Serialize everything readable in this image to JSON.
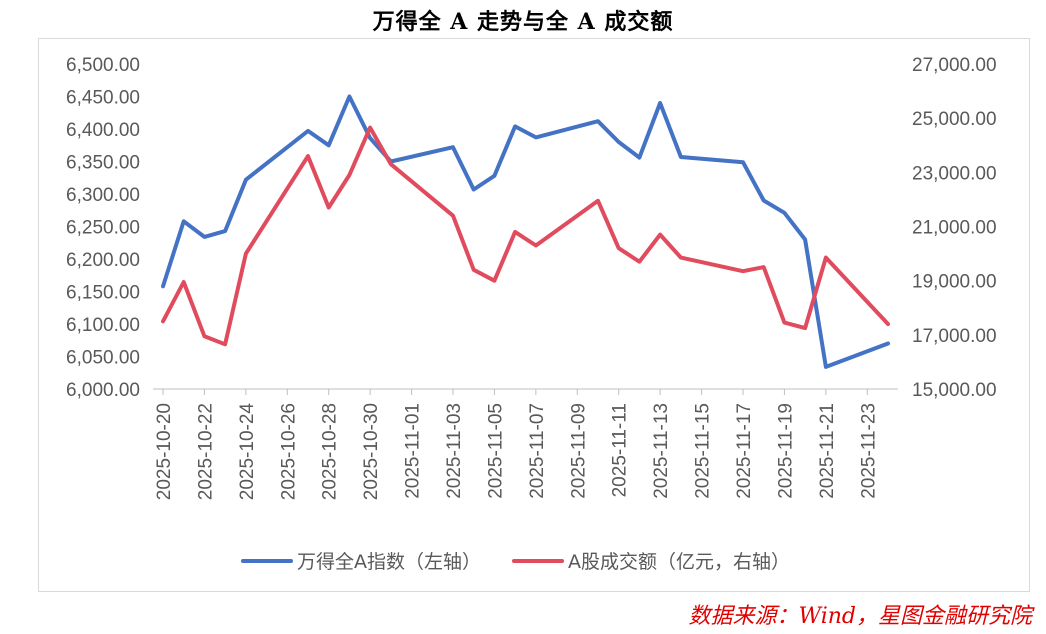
{
  "chart_data": {
    "type": "line",
    "title": "万得全 A 走势与全 A 成交额",
    "x_tick_labels": [
      "2025-10-20",
      "2025-10-22",
      "2025-10-24",
      "2025-10-26",
      "2025-10-28",
      "2025-10-30",
      "2025-11-01",
      "2025-11-03",
      "2025-11-05",
      "2025-11-07",
      "2025-11-09",
      "2025-11-11",
      "2025-11-13",
      "2025-11-15",
      "2025-11-17",
      "2025-11-19",
      "2025-11-21",
      "2025-11-23"
    ],
    "x_range": [
      "2025-10-20",
      "2025-11-24"
    ],
    "left_axis": {
      "ylim": [
        6000,
        6500
      ],
      "tick_labels": [
        "6,000.00",
        "6,050.00",
        "6,100.00",
        "6,150.00",
        "6,200.00",
        "6,250.00",
        "6,300.00",
        "6,350.00",
        "6,400.00",
        "6,450.00",
        "6,500.00"
      ]
    },
    "right_axis": {
      "ylim": [
        15000,
        27000
      ],
      "tick_labels": [
        "15,000.00",
        "17,000.00",
        "19,000.00",
        "21,000.00",
        "23,000.00",
        "25,000.00",
        "27,000.00"
      ]
    },
    "legend_position": "bottom",
    "series": [
      {
        "name": "万得全A指数（左轴）",
        "axis": "left",
        "color": "#4472c4",
        "points": [
          {
            "x": "2025-10-20",
            "y": 6158
          },
          {
            "x": "2025-10-21",
            "y": 6258
          },
          {
            "x": "2025-10-22",
            "y": 6234
          },
          {
            "x": "2025-10-23",
            "y": 6243
          },
          {
            "x": "2025-10-24",
            "y": 6322
          },
          {
            "x": "2025-10-27",
            "y": 6397
          },
          {
            "x": "2025-10-28",
            "y": 6375
          },
          {
            "x": "2025-10-29",
            "y": 6450
          },
          {
            "x": "2025-10-30",
            "y": 6386
          },
          {
            "x": "2025-10-31",
            "y": 6350
          },
          {
            "x": "2025-11-03",
            "y": 6372
          },
          {
            "x": "2025-11-04",
            "y": 6307
          },
          {
            "x": "2025-11-05",
            "y": 6328
          },
          {
            "x": "2025-11-06",
            "y": 6404
          },
          {
            "x": "2025-11-07",
            "y": 6387
          },
          {
            "x": "2025-11-10",
            "y": 6412
          },
          {
            "x": "2025-11-11",
            "y": 6380
          },
          {
            "x": "2025-11-12",
            "y": 6356
          },
          {
            "x": "2025-11-13",
            "y": 6440
          },
          {
            "x": "2025-11-14",
            "y": 6357
          },
          {
            "x": "2025-11-17",
            "y": 6349
          },
          {
            "x": "2025-11-18",
            "y": 6290
          },
          {
            "x": "2025-11-19",
            "y": 6271
          },
          {
            "x": "2025-11-20",
            "y": 6230
          },
          {
            "x": "2025-11-21",
            "y": 6034
          },
          {
            "x": "2025-11-24",
            "y": 6070
          }
        ]
      },
      {
        "name": "A股成交额（亿元，右轴）",
        "axis": "right",
        "color": "#e04b5e",
        "points": [
          {
            "x": "2025-10-20",
            "y": 17500
          },
          {
            "x": "2025-10-21",
            "y": 18950
          },
          {
            "x": "2025-10-22",
            "y": 16950
          },
          {
            "x": "2025-10-23",
            "y": 16650
          },
          {
            "x": "2025-10-24",
            "y": 20000
          },
          {
            "x": "2025-10-27",
            "y": 23600
          },
          {
            "x": "2025-10-28",
            "y": 21700
          },
          {
            "x": "2025-10-29",
            "y": 22900
          },
          {
            "x": "2025-10-30",
            "y": 24650
          },
          {
            "x": "2025-10-31",
            "y": 23300
          },
          {
            "x": "2025-11-03",
            "y": 21400
          },
          {
            "x": "2025-11-04",
            "y": 19400
          },
          {
            "x": "2025-11-05",
            "y": 19000
          },
          {
            "x": "2025-11-06",
            "y": 20800
          },
          {
            "x": "2025-11-07",
            "y": 20300
          },
          {
            "x": "2025-11-10",
            "y": 21950
          },
          {
            "x": "2025-11-11",
            "y": 20200
          },
          {
            "x": "2025-11-12",
            "y": 19700
          },
          {
            "x": "2025-11-13",
            "y": 20700
          },
          {
            "x": "2025-11-14",
            "y": 19850
          },
          {
            "x": "2025-11-17",
            "y": 19350
          },
          {
            "x": "2025-11-18",
            "y": 19500
          },
          {
            "x": "2025-11-19",
            "y": 17450
          },
          {
            "x": "2025-11-20",
            "y": 17250
          },
          {
            "x": "2025-11-21",
            "y": 19850
          },
          {
            "x": "2025-11-24",
            "y": 17400
          }
        ]
      }
    ]
  },
  "source_note": "数据来源：Wind，星图金融研究院"
}
